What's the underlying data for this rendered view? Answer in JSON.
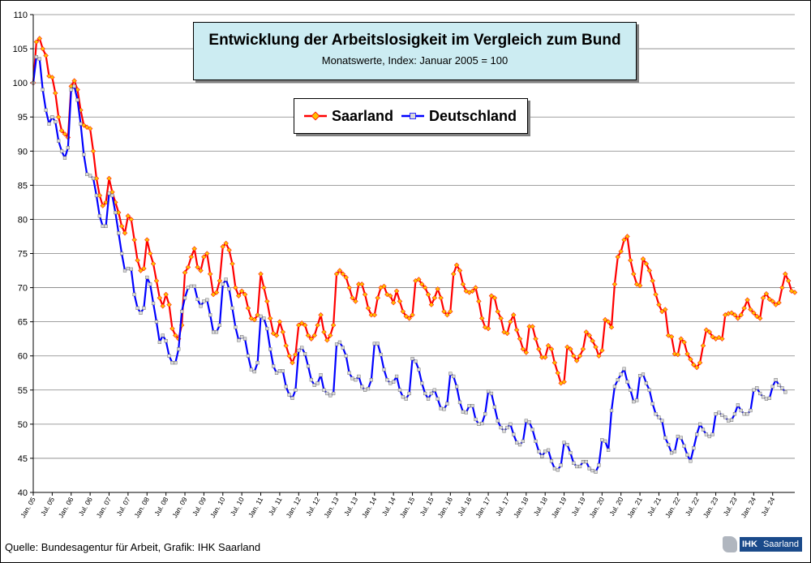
{
  "chart_data": {
    "type": "line",
    "title": "Entwicklung der Arbeitslosigkeit im Vergleich zum Bund",
    "subtitle": "Monatswerte, Index: Januar 2005 = 100",
    "ylim": [
      40,
      110
    ],
    "ytick_step": 5,
    "x_tick_labels": [
      "Jan. 05",
      "Jul. 05",
      "Jan. 06",
      "Jul. 06",
      "Jan. 07",
      "Jul. 07",
      "Jan. 08",
      "Jul. 08",
      "Jan. 09",
      "Jul. 09",
      "Jan. 10",
      "Jul. 10",
      "Jan. 11",
      "Jul. 11",
      "Jan. 12",
      "Jul. 12",
      "Jan. 13",
      "Jul. 13",
      "Jan. 14",
      "Jul. 14",
      "Jan. 15",
      "Jul. 15",
      "Jan. 16",
      "Jul. 16",
      "Jan. 17",
      "Jul. 17",
      "Jan. 18",
      "Jul. 18",
      "Jan. 19",
      "Jul. 19",
      "Jan. 20",
      "Jul. 20",
      "Jan. 21",
      "Jul. 21",
      "Jan. 22",
      "Jul. 22",
      "Jan. 23",
      "Jul. 23",
      "Jan. 24",
      "Jul. 24"
    ],
    "legend_position": "top-center",
    "series": [
      {
        "name": "Saarland",
        "color": "#ff0000",
        "marker_color": "#ffc000",
        "values": [
          100,
          106,
          106.5,
          105,
          104,
          101,
          100.8,
          98.5,
          95,
          93,
          92.5,
          92,
          99.5,
          100.3,
          99,
          96,
          93.8,
          93.5,
          93.3,
          90,
          86,
          83.5,
          82,
          82.5,
          86,
          84,
          82.5,
          81,
          79,
          78,
          80.5,
          80,
          77,
          74,
          72.5,
          72.8,
          77,
          75,
          73.5,
          71,
          68.5,
          67.3,
          69,
          67.5,
          64,
          63,
          62.5,
          64.5,
          72.2,
          73,
          74.5,
          75.7,
          73,
          72.5,
          74.5,
          75,
          72,
          69,
          69.3,
          71,
          76,
          76.5,
          75.5,
          73.5,
          70,
          68.8,
          69.5,
          69,
          67,
          65.5,
          65.3,
          66,
          72,
          70,
          68,
          65.5,
          63.3,
          63,
          65,
          63.5,
          61.5,
          60,
          59,
          60.2,
          64.5,
          64.8,
          64.5,
          63,
          62.5,
          63,
          64.5,
          66,
          63.5,
          62.3,
          63,
          64.5,
          72,
          72.5,
          72,
          71.5,
          70,
          68.5,
          68,
          70.5,
          70.5,
          69,
          67,
          66,
          66,
          68.5,
          70,
          70.2,
          69,
          68.8,
          67.8,
          69.5,
          68,
          66.5,
          65.8,
          65.5,
          66,
          71,
          71.2,
          70.5,
          70,
          69,
          67.5,
          68.5,
          69.8,
          68.5,
          66.5,
          66,
          66.5,
          72,
          73.3,
          72.5,
          70.5,
          69.5,
          69.3,
          69.5,
          70,
          68,
          65.5,
          64.2,
          64,
          68.8,
          68.5,
          66.5,
          65.5,
          63.5,
          63.3,
          65,
          66,
          63.8,
          62.5,
          61,
          60.5,
          64.3,
          64.3,
          62.5,
          61,
          59.8,
          59.8,
          61.5,
          61,
          59,
          57.5,
          56,
          56.2,
          61.3,
          61,
          60,
          59.3,
          60,
          61,
          63.5,
          63,
          62.2,
          61.3,
          60,
          60.8,
          65.3,
          65,
          64.2,
          70.5,
          74.5,
          75.3,
          77,
          77.5,
          74,
          72,
          70.5,
          70.3,
          74.2,
          73.5,
          72.5,
          71,
          69,
          67.5,
          66.5,
          66.8,
          63,
          62.8,
          60.3,
          60.2,
          62.5,
          62,
          60.3,
          59.5,
          58.7,
          58.3,
          59,
          61.5,
          63.8,
          63.5,
          62.8,
          62.5,
          62.7,
          62.5,
          66,
          66.2,
          66.3,
          66,
          65.5,
          66,
          67,
          68.2,
          66.8,
          66.3,
          65.8,
          65.5,
          68.5,
          69.1,
          68.3,
          68,
          67.5,
          67.8,
          70,
          72,
          71,
          69.5,
          69.3
        ]
      },
      {
        "name": "Deutschland",
        "color": "#0000ff",
        "marker_color": "#d9d9d9",
        "values": [
          100,
          103.8,
          103.5,
          99,
          96,
          94,
          95,
          94.3,
          91.5,
          90,
          89,
          90.5,
          99,
          99.5,
          97.5,
          94,
          89.5,
          86.6,
          86.4,
          86,
          83.5,
          80.5,
          79,
          79,
          83.8,
          83.5,
          81,
          78,
          75,
          72.5,
          72.8,
          72.7,
          69,
          67,
          66.3,
          67,
          71.5,
          70.5,
          67.7,
          65,
          62,
          63,
          62.2,
          60,
          59,
          59,
          61,
          66.5,
          68.5,
          70,
          70.2,
          70.2,
          68.3,
          67.3,
          68,
          68.2,
          66,
          63.5,
          63.5,
          64.5,
          70.5,
          71.2,
          69.8,
          67,
          64.2,
          62.3,
          62.8,
          62.5,
          60,
          58,
          57.7,
          59,
          65.8,
          65.5,
          64,
          61,
          58.5,
          57.5,
          57.8,
          57.8,
          55.5,
          54.3,
          53.8,
          55,
          60.8,
          61.2,
          60.3,
          58.5,
          56.5,
          55.7,
          56,
          57.2,
          55,
          54.5,
          54.2,
          54.5,
          61.7,
          62,
          61.2,
          60,
          57.5,
          56.7,
          56.5,
          57,
          55.5,
          55,
          55.2,
          56.5,
          61.8,
          61.8,
          60.2,
          58,
          56.5,
          56,
          56.2,
          57,
          55,
          54,
          53.7,
          54.5,
          59.6,
          59.2,
          58,
          56,
          54.5,
          53.7,
          54.5,
          55,
          53.7,
          52.3,
          52.2,
          53,
          57.4,
          57,
          55.5,
          53.2,
          51.8,
          51.7,
          52.7,
          52.7,
          50.7,
          50,
          50.1,
          51.5,
          54.8,
          54.5,
          52.5,
          50.5,
          49.5,
          49,
          49.5,
          50,
          48.5,
          47.3,
          47,
          47.5,
          50.5,
          50.3,
          49.2,
          47.5,
          46,
          45.3,
          46,
          46.2,
          44.6,
          43.5,
          43.3,
          44,
          47.3,
          47,
          45.8,
          44.3,
          43.8,
          43.8,
          44.5,
          44.5,
          43.5,
          43.2,
          43,
          44,
          47.7,
          47.5,
          46.2,
          52,
          55.5,
          56.5,
          57.3,
          58.1,
          56.2,
          55,
          53.3,
          53.5,
          57.1,
          57.3,
          56,
          55,
          53,
          51.5,
          51,
          50.5,
          48,
          47,
          45.8,
          46,
          48.2,
          48,
          46.8,
          45.5,
          44.6,
          46.5,
          48.5,
          50,
          49.2,
          48.5,
          48.2,
          48.5,
          51.5,
          51.7,
          51.3,
          51,
          50.5,
          50.6,
          51.5,
          52.8,
          52,
          51.5,
          51.5,
          52,
          55,
          55.3,
          54.5,
          54,
          53.7,
          53.8,
          55.5,
          56.5,
          55.7,
          55.3,
          54.7
        ]
      }
    ]
  },
  "footer": {
    "source": "Quelle: Bundesagentur für Arbeit, Grafik: IHK Saarland",
    "logo_ihk": "IHK",
    "logo_name": "Saarland"
  }
}
